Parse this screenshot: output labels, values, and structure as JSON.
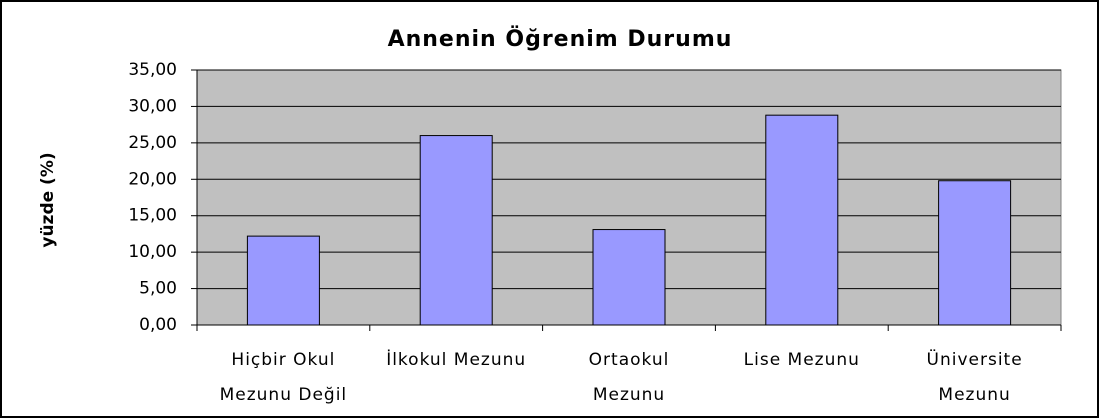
{
  "chart_data": {
    "type": "bar",
    "title": "Annenin Öğrenim Durumu",
    "y_label": "yüzde (%)",
    "categories": [
      "Hiçbir Okul Mezunu Değil",
      "İlkokul Mezunu",
      "Ortaokul Mezunu",
      "Lise Mezunu",
      "Üniversite Mezunu"
    ],
    "values": [
      12.2,
      26.0,
      13.1,
      28.8,
      19.8
    ],
    "color": "#9999ff",
    "ylim": [
      0,
      35
    ],
    "yticks": [
      {
        "value": 0,
        "label": "0,00"
      },
      {
        "value": 5,
        "label": "5,00"
      },
      {
        "value": 10,
        "label": "10,00"
      },
      {
        "value": 15,
        "label": "15,00"
      },
      {
        "value": 20,
        "label": "20,00"
      },
      {
        "value": 25,
        "label": "25,00"
      },
      {
        "value": 30,
        "label": "30,00"
      },
      {
        "value": 35,
        "label": "35,00"
      }
    ],
    "grid": true
  }
}
